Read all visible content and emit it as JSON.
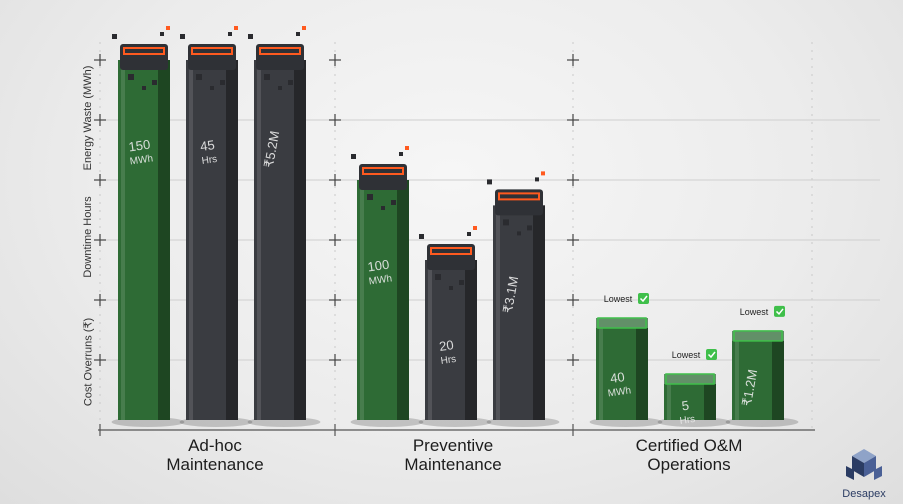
{
  "chart_data": {
    "type": "bar",
    "title": "",
    "y_axis_labels": [
      "Energy Waste (MWh)",
      "Downtime Hours",
      "Cost Overruns (₹)"
    ],
    "categories": [
      "Ad-hoc\nMaintenance",
      "Preventive\nMaintenance",
      "Certified O&M\nOperations"
    ],
    "series": [
      {
        "name": "Energy Waste (MWh)",
        "values": [
          150,
          100,
          40
        ],
        "labels": [
          "150\nMWh",
          "100\nMWh",
          "40\nMWh"
        ],
        "color": "#2e6b35"
      },
      {
        "name": "Downtime Hours",
        "values": [
          45,
          20,
          5
        ],
        "labels": [
          "45\nHrs",
          "20\nHrs",
          "5\nHrs"
        ],
        "color": "#3a3c41"
      },
      {
        "name": "Cost Overruns (₹)",
        "values": [
          5.2,
          3.1,
          1.2
        ],
        "labels": [
          "₹5.2M",
          "₹3.1M",
          "₹1.2M"
        ],
        "color": "#3a3c41"
      }
    ],
    "badge_text": "Lowest",
    "grid": true,
    "accent_color": "#ff5a1f",
    "highlight_color": "#3fbf4a"
  },
  "brand": {
    "name": "Desapex"
  }
}
